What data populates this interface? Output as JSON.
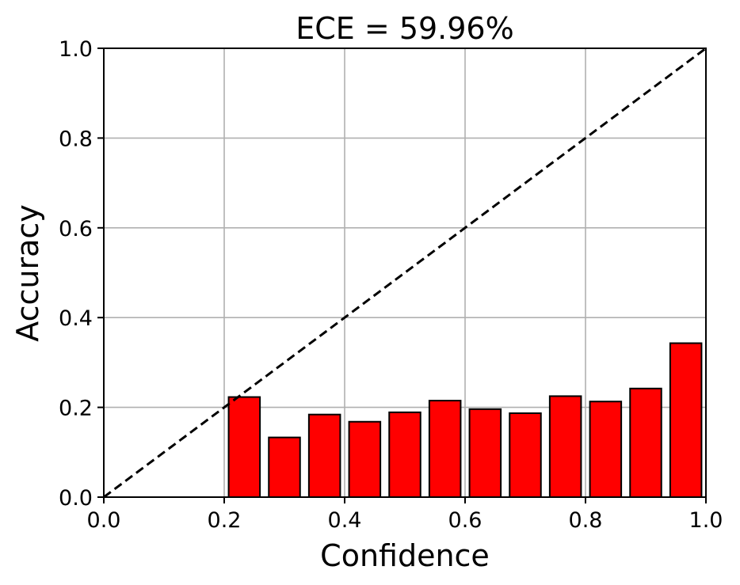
{
  "chart_data": {
    "type": "bar",
    "title": "ECE = 59.96%",
    "xlabel": "Confidence",
    "ylabel": "Accuracy",
    "xlim": [
      0.0,
      1.0
    ],
    "ylim": [
      0.0,
      1.0
    ],
    "xticks": [
      "0.0",
      "0.2",
      "0.4",
      "0.6",
      "0.8",
      "1.0"
    ],
    "yticks": [
      "0.0",
      "0.2",
      "0.4",
      "0.6",
      "0.8",
      "1.0"
    ],
    "grid": true,
    "bar_color": "#ff0000",
    "diagonal_reference": true,
    "bars": [
      {
        "x_start": 0.2,
        "x_end": 0.2667,
        "value": 0.223
      },
      {
        "x_start": 0.2667,
        "x_end": 0.3333,
        "value": 0.133
      },
      {
        "x_start": 0.3333,
        "x_end": 0.4,
        "value": 0.184
      },
      {
        "x_start": 0.4,
        "x_end": 0.4667,
        "value": 0.168
      },
      {
        "x_start": 0.4667,
        "x_end": 0.5333,
        "value": 0.189
      },
      {
        "x_start": 0.5333,
        "x_end": 0.6,
        "value": 0.215
      },
      {
        "x_start": 0.6,
        "x_end": 0.6667,
        "value": 0.196
      },
      {
        "x_start": 0.6667,
        "x_end": 0.7333,
        "value": 0.187
      },
      {
        "x_start": 0.7333,
        "x_end": 0.8,
        "value": 0.225
      },
      {
        "x_start": 0.8,
        "x_end": 0.8667,
        "value": 0.213
      },
      {
        "x_start": 0.8667,
        "x_end": 0.9333,
        "value": 0.242
      },
      {
        "x_start": 0.9333,
        "x_end": 1.0,
        "value": 0.343
      }
    ]
  }
}
